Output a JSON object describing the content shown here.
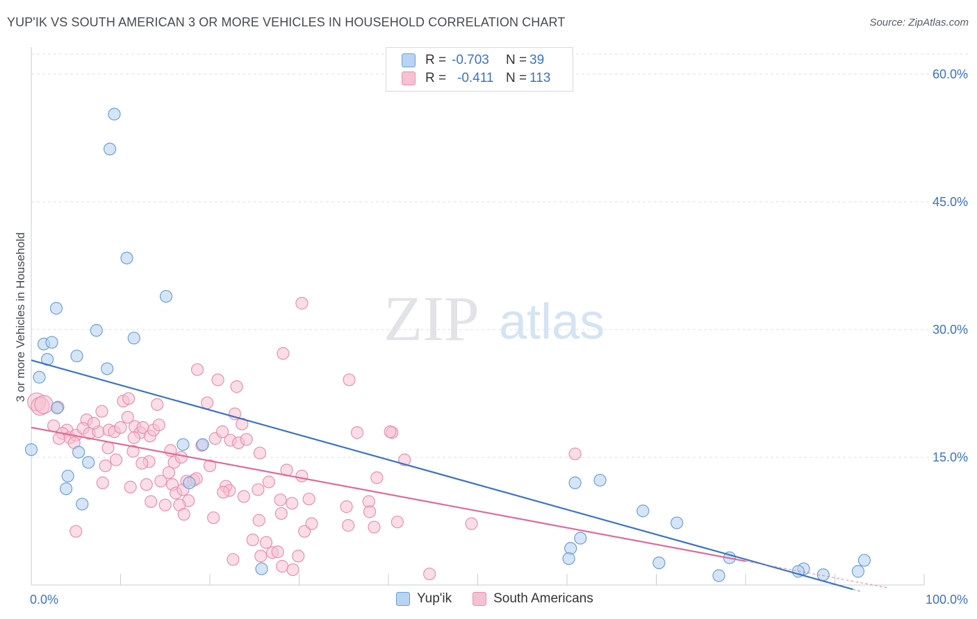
{
  "title": "YUP'IK VS SOUTH AMERICAN 3 OR MORE VEHICLES IN HOUSEHOLD CORRELATION CHART",
  "source": "Source: ZipAtlas.com",
  "watermark": {
    "zip": "ZIP",
    "atlas": "atlas"
  },
  "colors": {
    "blue_fill": "#b9d3f2",
    "blue_stroke": "#6b9fd8",
    "blue_line": "#3a72c8",
    "pink_fill": "#f6c1d2",
    "pink_stroke": "#e890ae",
    "pink_line": "#e06a96",
    "axis_text": "#3a72c8",
    "grid": "#dcdfe4"
  },
  "legend_top": {
    "rows": [
      {
        "r_label": "R =",
        "r_value": "-0.703",
        "n_label": "N =",
        "n_value": "39",
        "series": "blue"
      },
      {
        "r_label": "R =",
        "r_value": "-0.411",
        "n_label": "N =",
        "n_value": "113",
        "series": "pink"
      }
    ]
  },
  "legend_bottom": [
    {
      "label": "Yup'ik",
      "series": "blue"
    },
    {
      "label": "South Americans",
      "series": "pink"
    }
  ],
  "chart_data": {
    "type": "scatter",
    "title": "YUP'IK VS SOUTH AMERICAN 3 OR MORE VEHICLES IN HOUSEHOLD CORRELATION CHART",
    "xlabel": "",
    "ylabel": "3 or more Vehicles in Household",
    "xlim": [
      0,
      100
    ],
    "ylim": [
      0,
      63
    ],
    "x_tick_labels": [
      "0.0%",
      "100.0%"
    ],
    "y_ticks": [
      15,
      30,
      45,
      60
    ],
    "y_tick_labels": [
      "15.0%",
      "30.0%",
      "45.0%",
      "60.0%"
    ],
    "grid": true,
    "series": [
      {
        "name": "Yup'ik",
        "color": "blue",
        "points": [
          [
            9.3,
            55.3
          ],
          [
            8.8,
            51.2
          ],
          [
            10.7,
            38.4
          ],
          [
            15.1,
            33.9
          ],
          [
            2.8,
            32.5
          ],
          [
            7.3,
            29.9
          ],
          [
            11.5,
            29.0
          ],
          [
            1.4,
            28.3
          ],
          [
            2.3,
            28.5
          ],
          [
            5.1,
            26.9
          ],
          [
            1.8,
            26.5
          ],
          [
            8.5,
            25.4
          ],
          [
            0.9,
            24.4
          ],
          [
            2.9,
            20.8
          ],
          [
            0.0,
            15.9
          ],
          [
            5.3,
            15.6
          ],
          [
            6.4,
            14.4
          ],
          [
            17.0,
            16.5
          ],
          [
            19.2,
            16.5
          ],
          [
            4.1,
            12.8
          ],
          [
            3.9,
            11.3
          ],
          [
            17.7,
            12.0
          ],
          [
            5.7,
            9.5
          ],
          [
            60.9,
            12.0
          ],
          [
            63.7,
            12.3
          ],
          [
            68.5,
            8.7
          ],
          [
            72.3,
            7.3
          ],
          [
            61.5,
            5.5
          ],
          [
            60.4,
            4.3
          ],
          [
            60.2,
            3.1
          ],
          [
            70.3,
            2.6
          ],
          [
            25.8,
            1.9
          ],
          [
            78.2,
            3.2
          ],
          [
            77.0,
            1.1
          ],
          [
            86.5,
            1.9
          ],
          [
            85.9,
            1.6
          ],
          [
            88.7,
            1.2
          ],
          [
            93.3,
            2.9
          ],
          [
            92.6,
            1.6
          ]
        ]
      },
      {
        "name": "South Americans",
        "color": "pink",
        "points": [
          [
            0.6,
            21.5
          ],
          [
            1.0,
            21.0
          ],
          [
            1.4,
            21.2
          ],
          [
            3.0,
            20.9
          ],
          [
            2.5,
            18.7
          ],
          [
            4.0,
            18.2
          ],
          [
            3.5,
            17.8
          ],
          [
            4.3,
            17.3
          ],
          [
            5.0,
            17.6
          ],
          [
            6.2,
            19.4
          ],
          [
            5.8,
            18.4
          ],
          [
            6.5,
            17.8
          ],
          [
            7.5,
            18.0
          ],
          [
            7.0,
            19.0
          ],
          [
            7.9,
            20.4
          ],
          [
            8.7,
            18.2
          ],
          [
            9.3,
            18.0
          ],
          [
            10.0,
            18.5
          ],
          [
            10.8,
            19.7
          ],
          [
            10.3,
            21.6
          ],
          [
            11.6,
            18.6
          ],
          [
            12.2,
            17.9
          ],
          [
            12.5,
            18.5
          ],
          [
            13.3,
            17.5
          ],
          [
            13.7,
            18.2
          ],
          [
            14.1,
            21.2
          ],
          [
            3.1,
            17.2
          ],
          [
            4.8,
            16.7
          ],
          [
            8.6,
            16.1
          ],
          [
            9.5,
            14.7
          ],
          [
            8.3,
            14.0
          ],
          [
            11.4,
            15.7
          ],
          [
            13.2,
            14.5
          ],
          [
            14.5,
            12.2
          ],
          [
            15.4,
            13.2
          ],
          [
            16.0,
            14.4
          ],
          [
            15.6,
            15.8
          ],
          [
            16.8,
            15.0
          ],
          [
            17.4,
            12.2
          ],
          [
            18.2,
            12.3
          ],
          [
            15.8,
            11.8
          ],
          [
            16.2,
            10.8
          ],
          [
            17.0,
            11.2
          ],
          [
            17.6,
            9.9
          ],
          [
            16.6,
            9.4
          ],
          [
            17.1,
            8.3
          ],
          [
            18.5,
            12.5
          ],
          [
            11.1,
            11.5
          ],
          [
            12.9,
            11.8
          ],
          [
            20.0,
            14.0
          ],
          [
            19.1,
            16.4
          ],
          [
            20.6,
            17.2
          ],
          [
            21.4,
            18.0
          ],
          [
            22.3,
            17.0
          ],
          [
            22.8,
            20.1
          ],
          [
            23.2,
            16.7
          ],
          [
            24.1,
            17.1
          ],
          [
            23.6,
            18.9
          ],
          [
            25.6,
            15.5
          ],
          [
            19.7,
            21.4
          ],
          [
            18.6,
            25.3
          ],
          [
            20.9,
            24.1
          ],
          [
            23.0,
            23.3
          ],
          [
            21.8,
            11.6
          ],
          [
            22.2,
            11.1
          ],
          [
            21.5,
            10.9
          ],
          [
            23.8,
            10.4
          ],
          [
            25.4,
            11.2
          ],
          [
            26.6,
            12.1
          ],
          [
            27.9,
            10.0
          ],
          [
            28.6,
            13.5
          ],
          [
            29.2,
            9.6
          ],
          [
            28.0,
            8.4
          ],
          [
            30.3,
            12.8
          ],
          [
            31.1,
            10.1
          ],
          [
            28.2,
            27.2
          ],
          [
            30.3,
            33.1
          ],
          [
            35.6,
            24.1
          ],
          [
            36.5,
            17.9
          ],
          [
            38.7,
            12.6
          ],
          [
            37.8,
            9.8
          ],
          [
            35.3,
            9.2
          ],
          [
            37.9,
            8.6
          ],
          [
            38.4,
            6.8
          ],
          [
            41.0,
            7.4
          ],
          [
            41.8,
            14.7
          ],
          [
            40.4,
            17.9
          ],
          [
            40.2,
            18.0
          ],
          [
            49.3,
            7.2
          ],
          [
            60.9,
            15.4
          ],
          [
            25.5,
            7.6
          ],
          [
            24.8,
            5.3
          ],
          [
            26.3,
            5.0
          ],
          [
            27.0,
            3.8
          ],
          [
            27.6,
            3.9
          ],
          [
            28.1,
            2.2
          ],
          [
            29.3,
            1.8
          ],
          [
            29.9,
            3.4
          ],
          [
            25.7,
            3.4
          ],
          [
            22.6,
            3.0
          ],
          [
            30.6,
            6.3
          ],
          [
            31.4,
            7.2
          ],
          [
            35.5,
            7.0
          ],
          [
            44.6,
            1.3
          ],
          [
            13.4,
            9.8
          ],
          [
            15.0,
            9.4
          ],
          [
            10.9,
            21.9
          ],
          [
            14.3,
            18.8
          ],
          [
            11.5,
            17.3
          ],
          [
            12.4,
            14.3
          ],
          [
            8.0,
            12.0
          ],
          [
            5.0,
            6.3
          ],
          [
            20.4,
            7.9
          ]
        ]
      }
    ],
    "trend_lines": [
      {
        "series": "Yup'ik",
        "x": [
          0,
          92.0
        ],
        "y": [
          26.4,
          -0.5
        ],
        "extension": [
          92.0,
          93.0
        ]
      },
      {
        "series": "South Americans",
        "x": [
          0,
          80.0
        ],
        "y": [
          18.5,
          2.8
        ],
        "extension": [
          80.0,
          96.0
        ]
      }
    ]
  }
}
